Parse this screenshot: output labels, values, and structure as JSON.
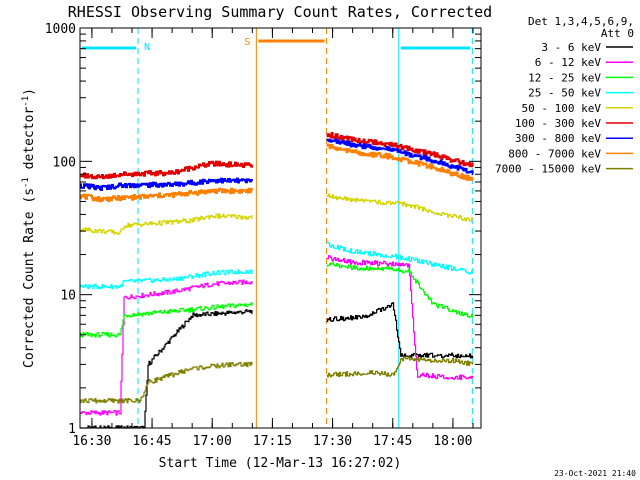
{
  "chart_data": {
    "type": "line",
    "title": "RHESSI Observing Summary Count Rates, Corrected",
    "xlabel": "Start Time (12-Mar-13 16:27:02)",
    "ylabel_parts": [
      "Corrected Count Rate (s",
      "-1",
      " detector",
      "-1",
      ")"
    ],
    "yscale": "log",
    "xlim": [
      "16:27:02",
      "18:07:00"
    ],
    "ylim": [
      1,
      1000
    ],
    "x_ticks": [
      "16:30",
      "16:45",
      "17:00",
      "17:15",
      "17:30",
      "17:45",
      "18:00"
    ],
    "y_ticks": [
      "1",
      "10",
      "100",
      "1000"
    ],
    "legend": {
      "placement": "top-right outside",
      "header": [
        "Det 1,3,4,5,6,9,",
        "Att 0"
      ],
      "entries": [
        {
          "label": "3 - 6 keV",
          "color": "#000000"
        },
        {
          "label": "6 - 12 keV",
          "color": "#ff00ff"
        },
        {
          "label": "12 - 25 keV",
          "color": "#00ff00"
        },
        {
          "label": "25 - 50 keV",
          "color": "#00ffff"
        },
        {
          "label": "50 - 100 keV",
          "color": "#d4d400"
        },
        {
          "label": "100 - 300 keV",
          "color": "#e00000"
        },
        {
          "label": "300 - 800 keV",
          "color": "#0000ff"
        },
        {
          "label": "800 - 7000 keV",
          "color": "#ff8000"
        },
        {
          "label": "7000 - 15000 keV",
          "color": "#808000"
        }
      ]
    },
    "night_intervals": [
      {
        "start": "16:27:02",
        "end": "16:41:30"
      },
      {
        "start": "17:46:30",
        "end": "18:04:50"
      }
    ],
    "night_label": "N",
    "saa_interval": {
      "start": "17:11:00",
      "end": "17:28:30",
      "label": "S"
    },
    "series": [
      {
        "name": "3 - 6 keV",
        "color": "#000000",
        "segments": [
          {
            "x": [
              "16:27:02",
              "16:41:30",
              "16:43:00",
              "16:44:00",
              "16:55:00",
              "17:10:00"
            ],
            "y": [
              1.0,
              1.0,
              1.0,
              3.0,
              7.0,
              7.5
            ]
          },
          {
            "x": [
              "17:28:30",
              "17:38:00",
              "17:41:00",
              "17:45:00",
              "17:47:00",
              "18:05:00"
            ],
            "y": [
              6.5,
              6.8,
              7.5,
              8.5,
              3.5,
              3.5
            ]
          }
        ]
      },
      {
        "name": "6 - 12 keV",
        "color": "#ff00ff",
        "segments": [
          {
            "x": [
              "16:27:02",
              "16:37:00",
              "16:38:00",
              "16:50:00",
              "17:00:00",
              "17:10:00"
            ],
            "y": [
              1.3,
              1.3,
              9.5,
              10.5,
              12.0,
              12.5
            ]
          },
          {
            "x": [
              "17:28:30",
              "17:35:00",
              "17:45:00",
              "17:49:00",
              "17:51:00",
              "18:00:00",
              "18:05:00"
            ],
            "y": [
              19.0,
              17.5,
              17.0,
              16.5,
              2.5,
              2.4,
              2.4
            ]
          }
        ]
      },
      {
        "name": "12 - 25 keV",
        "color": "#00ff00",
        "segments": [
          {
            "x": [
              "16:27:02",
              "16:37:00",
              "16:38:00",
              "16:50:00",
              "17:00:00",
              "17:10:00"
            ],
            "y": [
              5.0,
              5.0,
              7.0,
              7.5,
              8.0,
              8.5
            ]
          },
          {
            "x": [
              "17:28:30",
              "17:35:00",
              "17:45:00",
              "17:49:00",
              "17:55:00",
              "18:05:00"
            ],
            "y": [
              17.0,
              16.0,
              15.5,
              15.0,
              8.5,
              6.8
            ]
          }
        ]
      },
      {
        "name": "25 - 50 keV",
        "color": "#00ffff",
        "segments": [
          {
            "x": [
              "16:27:02",
              "16:37:00",
              "16:38:00",
              "16:50:00",
              "17:00:00",
              "17:10:00"
            ],
            "y": [
              11.5,
              11.5,
              12.5,
              13.0,
              14.5,
              15.0
            ]
          },
          {
            "x": [
              "17:28:30",
              "17:35:00",
              "17:45:00",
              "17:49:00",
              "17:55:00",
              "18:05:00"
            ],
            "y": [
              24.0,
              21.0,
              19.5,
              18.5,
              17.0,
              14.5
            ]
          }
        ]
      },
      {
        "name": "50 - 100 keV",
        "color": "#d4d400",
        "segments": [
          {
            "x": [
              "16:27:02",
              "16:37:00",
              "16:38:00",
              "16:50:00",
              "16:55:00",
              "17:00:00",
              "17:10:00"
            ],
            "y": [
              31.0,
              29.0,
              33.0,
              35.0,
              36.0,
              39.0,
              38.0
            ]
          },
          {
            "x": [
              "17:28:30",
              "17:35:00",
              "17:45:00",
              "17:49:00",
              "17:55:00",
              "18:05:00"
            ],
            "y": [
              55.0,
              51.0,
              49.0,
              47.0,
              42.0,
              36.0
            ]
          }
        ]
      },
      {
        "name": "100 - 300 keV",
        "color": "#e00000",
        "segments": [
          {
            "x": [
              "16:27:02",
              "16:32:00",
              "16:37:00",
              "16:50:00",
              "16:55:00",
              "17:00:00",
              "17:10:00"
            ],
            "y": [
              79.0,
              76.0,
              80.0,
              82.0,
              90.0,
              96.0,
              93.0
            ]
          },
          {
            "x": [
              "17:28:30",
              "17:35:00",
              "17:45:00",
              "17:49:00",
              "17:55:00",
              "18:05:00"
            ],
            "y": [
              160.0,
              145.0,
              133.0,
              124.0,
              113.0,
              92.0
            ]
          }
        ]
      },
      {
        "name": "300 - 800 keV",
        "color": "#0000ff",
        "segments": [
          {
            "x": [
              "16:27:02",
              "16:32:00",
              "16:37:00",
              "16:50:00",
              "16:55:00",
              "17:00:00",
              "17:10:00"
            ],
            "y": [
              66.0,
              63.0,
              66.0,
              67.0,
              69.0,
              72.0,
              71.0
            ]
          },
          {
            "x": [
              "17:28:30",
              "17:35:00",
              "17:45:00",
              "17:49:00",
              "17:55:00",
              "18:05:00"
            ],
            "y": [
              148.0,
              133.0,
              122.0,
              113.0,
              102.0,
              82.0
            ]
          }
        ]
      },
      {
        "name": "800 - 7000 keV",
        "color": "#ff8000",
        "segments": [
          {
            "x": [
              "16:27:02",
              "16:32:00",
              "16:37:00",
              "16:50:00",
              "16:55:00",
              "17:00:00",
              "17:10:00"
            ],
            "y": [
              55.0,
              52.0,
              53.0,
              56.0,
              58.0,
              60.0,
              60.0
            ]
          },
          {
            "x": [
              "17:28:30",
              "17:35:00",
              "17:45:00",
              "17:49:00",
              "17:55:00",
              "18:05:00"
            ],
            "y": [
              130.0,
              117.0,
              108.0,
              100.0,
              90.0,
              73.0
            ]
          }
        ]
      },
      {
        "name": "7000 - 15000 keV",
        "color": "#808000",
        "segments": [
          {
            "x": [
              "16:27:02",
              "16:42:00",
              "16:44:00",
              "16:55:00",
              "17:05:00",
              "17:10:00"
            ],
            "y": [
              1.6,
              1.6,
              2.2,
              2.8,
              3.0,
              3.0
            ]
          },
          {
            "x": [
              "17:28:30",
              "17:40:00",
              "17:45:00",
              "17:47:00",
              "18:00:00",
              "18:05:00"
            ],
            "y": [
              2.5,
              2.6,
              2.5,
              3.3,
              3.2,
              3.0
            ]
          }
        ]
      }
    ]
  },
  "footer_timestamp": "23-Oct-2021 21:40"
}
